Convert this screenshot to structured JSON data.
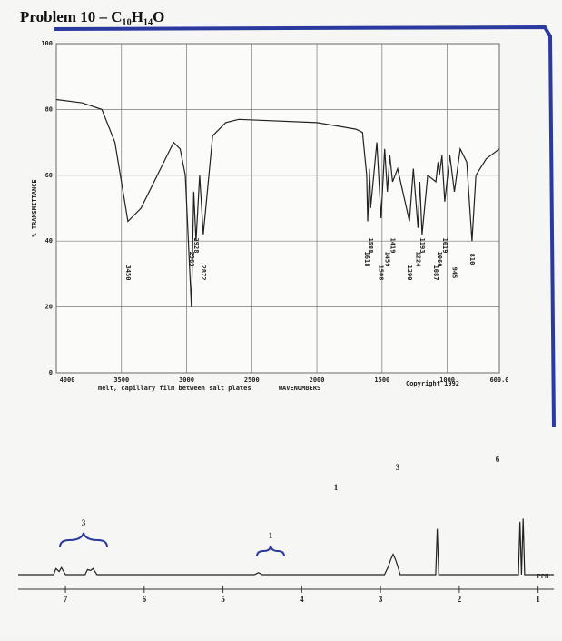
{
  "title": "Problem 10 – C₁₀H₁₄O",
  "chart_data": [
    {
      "type": "line",
      "y_label": "% TRANSMITTANCE",
      "x_label": "WAVENUMBERS",
      "annotations": [
        "melt, capillary film between salt plates",
        "Copyright 1992"
      ],
      "color": "#222222",
      "grid": true,
      "xlim": [
        4000,
        600
      ],
      "ylim": [
        0,
        100
      ],
      "xticks": [
        4000,
        3500,
        3000,
        2500,
        2000,
        1500,
        1000,
        {
          "value": 600,
          "label": "600.0"
        }
      ],
      "yticks": [
        0,
        20,
        40,
        60,
        80,
        100
      ],
      "x": [
        4000,
        3800,
        3650,
        3550,
        3450,
        3350,
        3200,
        3100,
        3050,
        3010,
        2963,
        2945,
        2928,
        2900,
        2872,
        2800,
        2700,
        2600,
        2000,
        1700,
        1650,
        1618,
        1610,
        1595,
        1588,
        1540,
        1508,
        1480,
        1459,
        1440,
        1419,
        1380,
        1290,
        1260,
        1224,
        1210,
        1193,
        1150,
        1087,
        1070,
        1060,
        1040,
        1019,
        980,
        945,
        900,
        850,
        810,
        780,
        700,
        600
      ],
      "values": [
        83,
        82,
        80,
        70,
        46,
        50,
        62,
        70,
        68,
        60,
        20,
        55,
        40,
        60,
        42,
        72,
        76,
        77,
        76,
        74,
        73,
        60,
        46,
        62,
        50,
        70,
        47,
        68,
        55,
        66,
        58,
        62,
        46,
        62,
        44,
        58,
        42,
        60,
        58,
        64,
        60,
        66,
        52,
        66,
        55,
        68,
        64,
        40,
        60,
        65,
        68
      ],
      "peak_labels": [
        3450,
        2963,
        2928,
        2872,
        1618,
        1588,
        1508,
        1459,
        1419,
        1290,
        1224,
        1193,
        1087,
        1060,
        1019,
        945,
        810
      ]
    },
    {
      "type": "line",
      "x_label": "PPM",
      "color": "#222222",
      "xlim": [
        7.6,
        0.8
      ],
      "ylim": [
        0,
        100
      ],
      "xticks": [
        7,
        6,
        5,
        4,
        3,
        2,
        1
      ],
      "integrations": [
        "3",
        "1",
        "1",
        "3",
        "6"
      ],
      "x": [
        7.6,
        7.15,
        7.12,
        7.08,
        7.05,
        7.0,
        6.75,
        6.72,
        6.68,
        6.65,
        6.6,
        4.6,
        4.55,
        4.5,
        2.95,
        2.9,
        2.87,
        2.84,
        2.81,
        2.78,
        2.75,
        2.3,
        2.28,
        2.26,
        1.25,
        1.23,
        1.21,
        1.19,
        1.17,
        0.8
      ],
      "values": [
        0,
        0,
        6,
        3,
        7,
        0,
        0,
        5,
        4,
        6,
        0,
        0,
        2,
        0,
        0,
        8,
        15,
        20,
        15,
        8,
        0,
        0,
        45,
        0,
        0,
        52,
        0,
        55,
        0,
        0
      ]
    }
  ]
}
